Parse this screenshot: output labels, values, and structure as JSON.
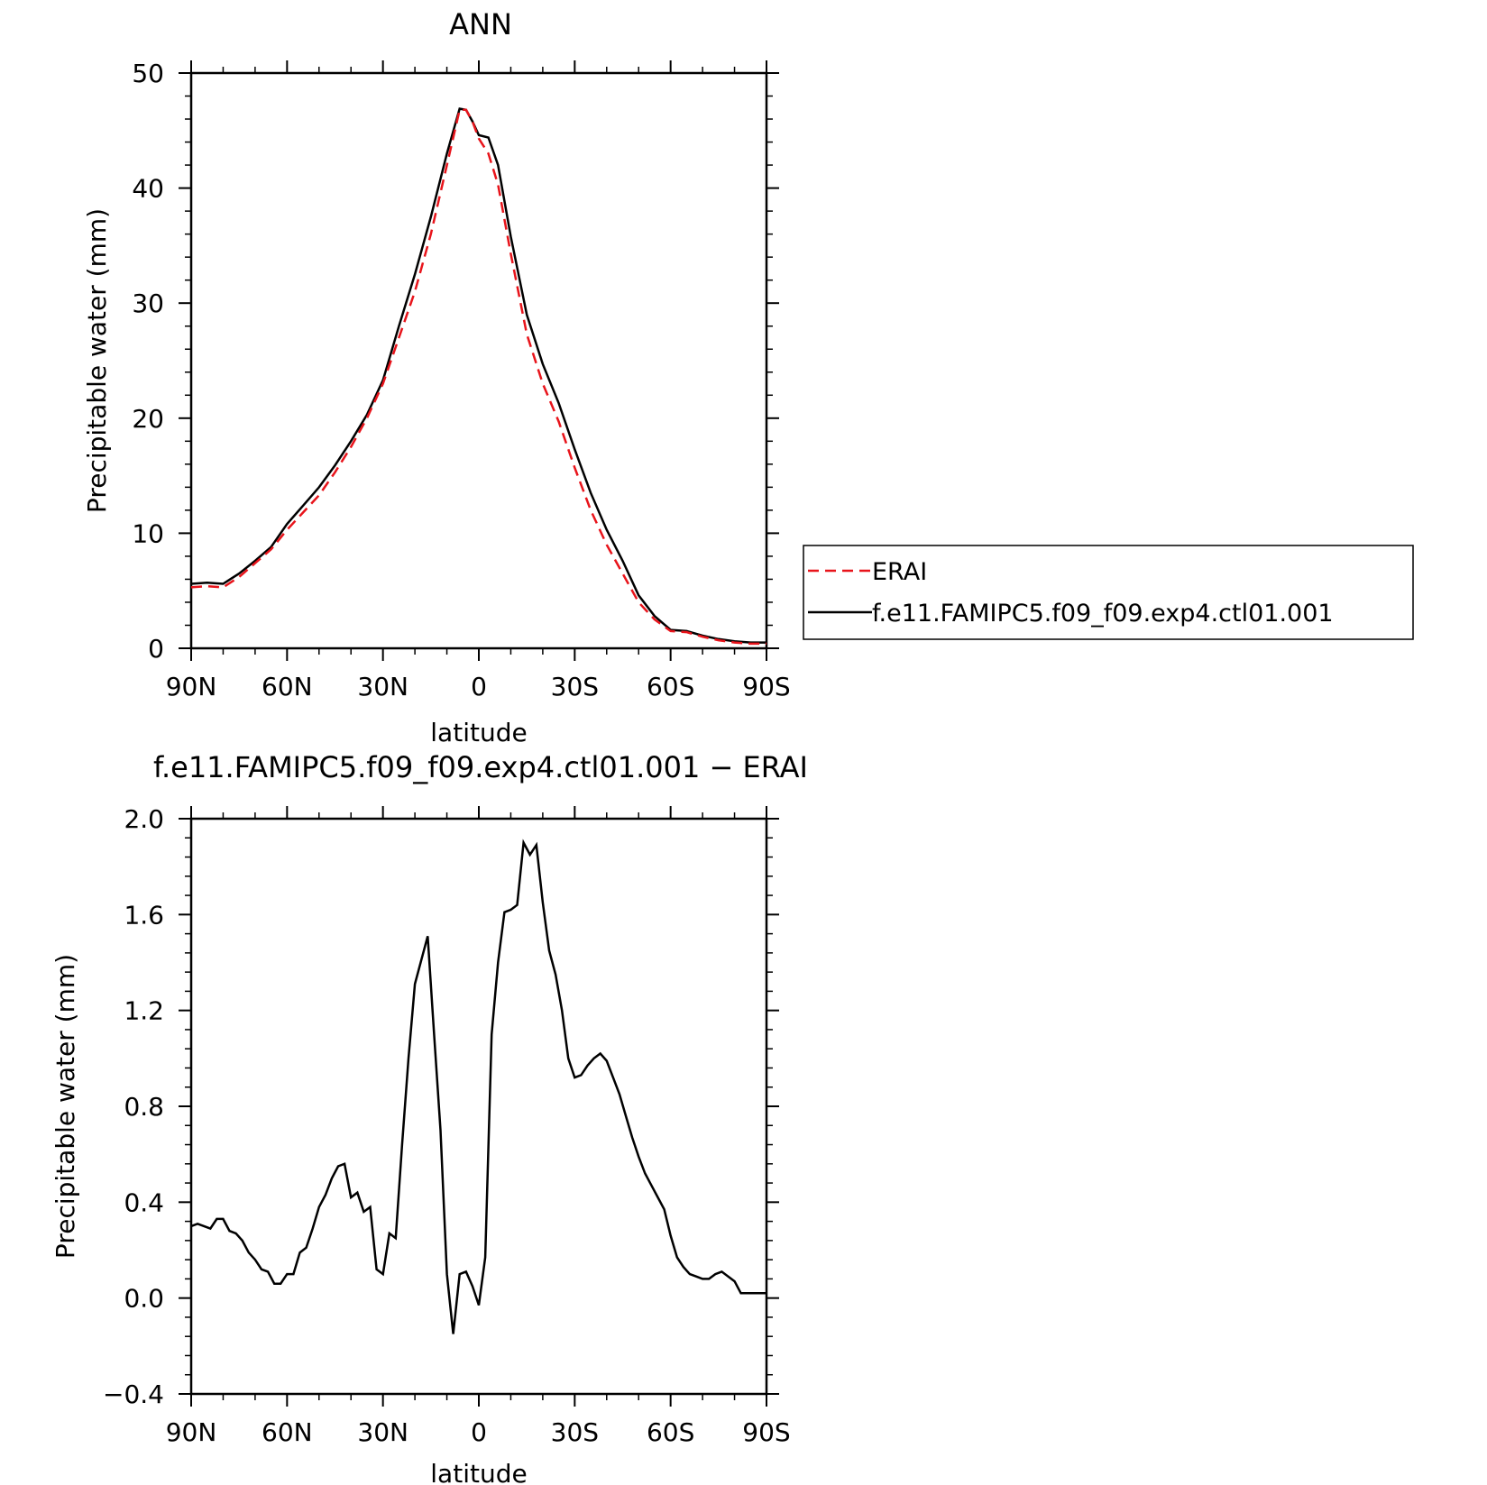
{
  "chart_data": [
    {
      "type": "line",
      "title": "ANN",
      "xlabel": "latitude",
      "ylabel": "Precipitable water (mm)",
      "xlim": [
        -90,
        90
      ],
      "ylim": [
        0,
        50
      ],
      "x_ticks": [
        -90,
        -60,
        -30,
        0,
        30,
        60,
        90
      ],
      "x_tick_labels": [
        "90N",
        "60N",
        "30N",
        "0",
        "30S",
        "60S",
        "90S"
      ],
      "y_ticks": [
        0,
        10,
        20,
        30,
        40,
        50
      ],
      "y_tick_labels": [
        "0",
        "10",
        "20",
        "30",
        "40",
        "50"
      ],
      "legend": {
        "placement": "right"
      },
      "series": [
        {
          "name": "ERAI",
          "color": "#e8141b",
          "dash": true,
          "x": [
            -90,
            -85,
            -80,
            -75,
            -70,
            -65,
            -60,
            -55,
            -50,
            -45,
            -40,
            -35,
            -30,
            -25,
            -20,
            -15,
            -10,
            -6,
            -4,
            -2,
            0,
            3,
            6,
            10,
            15,
            20,
            25,
            30,
            35,
            40,
            45,
            50,
            55,
            60,
            65,
            70,
            75,
            80,
            85,
            88,
            90
          ],
          "y": [
            5.3,
            5.4,
            5.3,
            6.2,
            7.4,
            8.6,
            10.3,
            11.8,
            13.3,
            15.3,
            17.5,
            20,
            23,
            27,
            31,
            36,
            42,
            46.8,
            46.8,
            45.8,
            44.3,
            43,
            40.3,
            34.3,
            27.3,
            23,
            19.7,
            15.7,
            12,
            9,
            6.5,
            4,
            2.5,
            1.5,
            1.4,
            1.0,
            0.7,
            0.5,
            0.4,
            0.4,
            0.4
          ]
        },
        {
          "name": "f.e11.FAMIPC5.f09_f09.exp4.ctl01.001",
          "color": "#000000",
          "dash": false,
          "x": [
            -90,
            -85,
            -80,
            -75,
            -70,
            -65,
            -60,
            -55,
            -50,
            -45,
            -40,
            -35,
            -30,
            -25,
            -20,
            -15,
            -10,
            -6,
            -4,
            -2,
            0,
            3,
            6,
            10,
            15,
            20,
            25,
            30,
            35,
            40,
            45,
            50,
            55,
            60,
            65,
            70,
            75,
            80,
            85,
            88,
            90
          ],
          "y": [
            5.6,
            5.7,
            5.6,
            6.5,
            7.6,
            8.8,
            10.8,
            12.4,
            14.0,
            15.9,
            18.0,
            20.3,
            23.3,
            28.0,
            32.5,
            37.5,
            43,
            46.9,
            46.8,
            45.8,
            44.6,
            44.4,
            42,
            35.8,
            29,
            24.7,
            21.3,
            17.3,
            13.5,
            10.3,
            7.6,
            4.6,
            2.8,
            1.6,
            1.5,
            1.1,
            0.8,
            0.6,
            0.5,
            0.5,
            0.5
          ]
        }
      ]
    },
    {
      "type": "line",
      "title": "f.e11.FAMIPC5.f09_f09.exp4.ctl01.001 − ERAI",
      "xlabel": "latitude",
      "ylabel": "Precipitable water (mm)",
      "xlim": [
        -90,
        90
      ],
      "ylim": [
        -0.4,
        2.0
      ],
      "x_ticks": [
        -90,
        -60,
        -30,
        0,
        30,
        60,
        90
      ],
      "x_tick_labels": [
        "90N",
        "60N",
        "30N",
        "0",
        "30S",
        "60S",
        "90S"
      ],
      "y_ticks": [
        -0.4,
        0.0,
        0.4,
        0.8,
        1.2,
        1.6,
        2.0
      ],
      "y_tick_labels": [
        "−0.4",
        "0.0",
        "0.4",
        "0.8",
        "1.2",
        "1.6",
        "2.0"
      ],
      "series": [
        {
          "color": "#000000",
          "x": [
            -90,
            -88,
            -86,
            -84,
            -82,
            -80,
            -78,
            -76,
            -74,
            -72,
            -70,
            -68,
            -66,
            -64,
            -62,
            -60,
            -58,
            -56,
            -54,
            -52,
            -50,
            -48,
            -46,
            -44,
            -42,
            -40,
            -38,
            -36,
            -34,
            -32,
            -30,
            -28,
            -26,
            -24,
            -22,
            -20,
            -18,
            -16,
            -14,
            -12,
            -10,
            -8,
            -6,
            -4,
            -2,
            0,
            2,
            4,
            6,
            8,
            10,
            12,
            14,
            16,
            18,
            20,
            22,
            24,
            26,
            28,
            30,
            32,
            34,
            36,
            38,
            40,
            42,
            44,
            46,
            48,
            50,
            52,
            54,
            56,
            58,
            60,
            62,
            64,
            66,
            68,
            70,
            72,
            74,
            76,
            78,
            80,
            82,
            84,
            86,
            88,
            90
          ],
          "y": [
            0.3,
            0.31,
            0.3,
            0.29,
            0.33,
            0.33,
            0.28,
            0.27,
            0.24,
            0.19,
            0.16,
            0.12,
            0.11,
            0.06,
            0.06,
            0.1,
            0.1,
            0.19,
            0.21,
            0.29,
            0.38,
            0.43,
            0.5,
            0.55,
            0.56,
            0.42,
            0.44,
            0.36,
            0.38,
            0.12,
            0.1,
            0.27,
            0.25,
            0.64,
            1.0,
            1.31,
            1.41,
            1.51,
            1.1,
            0.7,
            0.1,
            -0.15,
            0.1,
            0.11,
            0.05,
            -0.03,
            0.17,
            1.1,
            1.4,
            1.61,
            1.62,
            1.64,
            1.9,
            1.85,
            1.89,
            1.65,
            1.45,
            1.35,
            1.2,
            1.0,
            0.92,
            0.93,
            0.97,
            1.0,
            1.02,
            0.99,
            0.92,
            0.85,
            0.76,
            0.67,
            0.59,
            0.52,
            0.47,
            0.42,
            0.37,
            0.26,
            0.17,
            0.13,
            0.1,
            0.09,
            0.08,
            0.08,
            0.1,
            0.11,
            0.09,
            0.07,
            0.02,
            0.02,
            0.02,
            0.02,
            0.02
          ]
        }
      ]
    }
  ]
}
